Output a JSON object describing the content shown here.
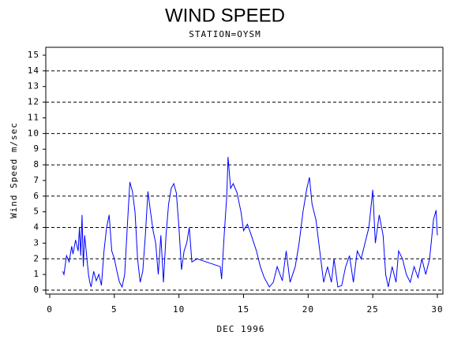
{
  "chart_data": {
    "type": "line",
    "title": "WIND SPEED",
    "subtitle": "STATION=OYSM",
    "x_label": "DEC 1996",
    "y_label": "Wind Speed m/sec",
    "xlim": [
      0,
      30
    ],
    "xticks": [
      0,
      5,
      10,
      15,
      20,
      25,
      30
    ],
    "ylim": [
      0,
      15
    ],
    "yticks": [
      0,
      1,
      2,
      3,
      4,
      5,
      6,
      7,
      8,
      9,
      10,
      11,
      12,
      13,
      14,
      15
    ],
    "grid": true,
    "series": [
      {
        "name": "Wind Speed",
        "color": "#0000ff",
        "x": [
          1.0,
          1.1,
          1.3,
          1.5,
          1.7,
          1.8,
          2.0,
          2.2,
          2.3,
          2.4,
          2.5,
          2.6,
          2.7,
          3.0,
          3.1,
          3.2,
          3.4,
          3.6,
          3.8,
          4.0,
          4.2,
          4.4,
          4.6,
          4.8,
          5.0,
          5.2,
          5.4,
          5.6,
          5.8,
          6.0,
          6.2,
          6.4,
          6.6,
          6.8,
          7.0,
          7.2,
          7.4,
          7.6,
          7.8,
          8.0,
          8.2,
          8.4,
          8.6,
          8.8,
          9.0,
          9.2,
          9.4,
          9.6,
          9.8,
          10.0,
          10.2,
          10.4,
          10.6,
          10.8,
          11.0,
          11.4,
          13.2,
          13.3,
          13.5,
          13.7,
          13.8,
          14.0,
          14.2,
          14.5,
          14.8,
          15.0,
          15.3,
          15.6,
          16.0,
          16.3,
          16.6,
          17.0,
          17.3,
          17.6,
          18.0,
          18.3,
          18.6,
          19.0,
          19.3,
          19.6,
          19.9,
          20.1,
          20.3,
          20.6,
          20.9,
          21.2,
          21.5,
          21.8,
          22.0,
          22.3,
          22.6,
          22.9,
          23.2,
          23.5,
          23.8,
          24.1,
          24.4,
          24.7,
          25.0,
          25.2,
          25.5,
          25.8,
          26.0,
          26.2,
          26.5,
          26.8,
          27.0,
          27.3,
          27.6,
          27.9,
          28.2,
          28.5,
          28.8,
          29.1,
          29.4,
          29.7,
          29.9,
          30.0
        ],
        "values": [
          1.2,
          1.0,
          2.2,
          1.8,
          2.8,
          2.3,
          3.2,
          2.5,
          4.0,
          2.2,
          4.8,
          1.5,
          3.5,
          1.0,
          0.5,
          0.2,
          1.2,
          0.6,
          1.0,
          0.3,
          2.5,
          4.0,
          4.8,
          2.5,
          2.0,
          1.2,
          0.5,
          0.2,
          1.0,
          4.0,
          6.9,
          6.3,
          5.0,
          2.0,
          0.5,
          1.2,
          3.5,
          6.3,
          5.0,
          3.8,
          3.0,
          1.0,
          3.5,
          0.5,
          3.5,
          5.5,
          6.5,
          6.8,
          6.2,
          4.0,
          1.3,
          2.5,
          3.0,
          4.0,
          1.8,
          2.0,
          1.5,
          0.7,
          3.5,
          6.0,
          8.5,
          6.5,
          6.8,
          6.2,
          5.0,
          3.8,
          4.2,
          3.5,
          2.5,
          1.5,
          0.8,
          0.2,
          0.5,
          1.5,
          0.6,
          2.5,
          0.5,
          1.5,
          3.0,
          5.0,
          6.5,
          7.2,
          5.5,
          4.5,
          2.5,
          0.5,
          1.5,
          0.5,
          2.0,
          0.2,
          0.3,
          1.5,
          2.2,
          0.5,
          2.5,
          2.0,
          3.0,
          4.0,
          6.4,
          3.0,
          4.8,
          3.5,
          1.0,
          0.2,
          1.5,
          0.5,
          2.5,
          2.0,
          1.0,
          0.5,
          1.5,
          0.8,
          2.0,
          1.0,
          2.0,
          4.5,
          5.1,
          3.5
        ]
      }
    ]
  }
}
